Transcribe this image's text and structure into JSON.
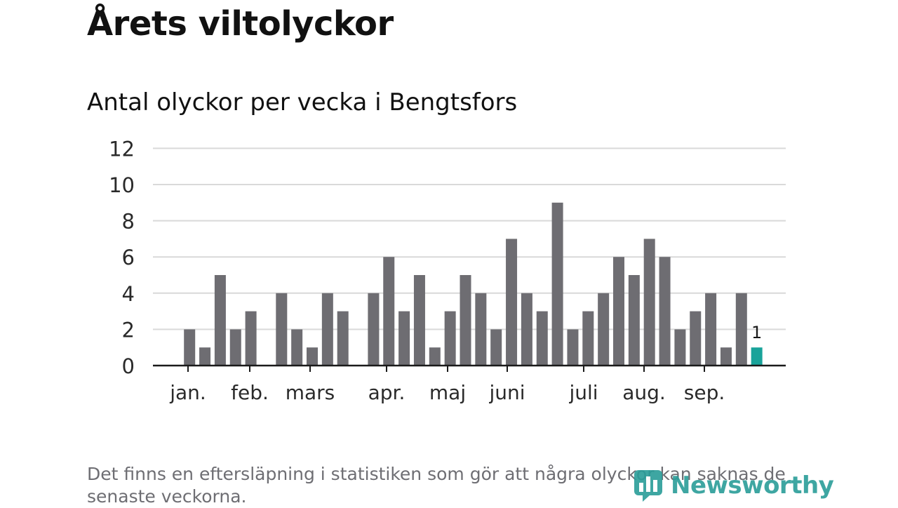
{
  "header": {
    "title": "Årets viltolyckor",
    "subtitle": "Antal olyckor per vecka i Bengtsfors"
  },
  "footnote": "Det finns en eftersläpning i statistiken som gör att några olyckor kan saknas de senaste veckorna.",
  "logo": {
    "text": "Newsworthy",
    "icon": "bar-chart-logo-icon"
  },
  "colors": {
    "bar": "#6e6d72",
    "highlight": "#19a39a",
    "grid": "#d9d9d9",
    "axis": "#1a1a1a",
    "brand": "#2a9d99"
  },
  "chart_data": {
    "type": "bar",
    "ylim": [
      0,
      12
    ],
    "yticks": [
      "0",
      "2",
      "4",
      "6",
      "8",
      "10",
      "12"
    ],
    "month_labels": [
      "jan.",
      "feb.",
      "mars",
      "apr.",
      "maj",
      "juni",
      "juli",
      "aug.",
      "sep."
    ],
    "values": [
      0,
      0,
      2,
      1,
      5,
      2,
      3,
      0,
      4,
      2,
      1,
      4,
      3,
      0,
      4,
      6,
      3,
      5,
      1,
      3,
      5,
      4,
      2,
      7,
      4,
      3,
      9,
      2,
      3,
      4,
      6,
      5,
      7,
      6,
      2,
      3,
      4,
      1,
      4,
      1
    ],
    "highlight_index": 39,
    "data_label": "1",
    "grid": true
  }
}
